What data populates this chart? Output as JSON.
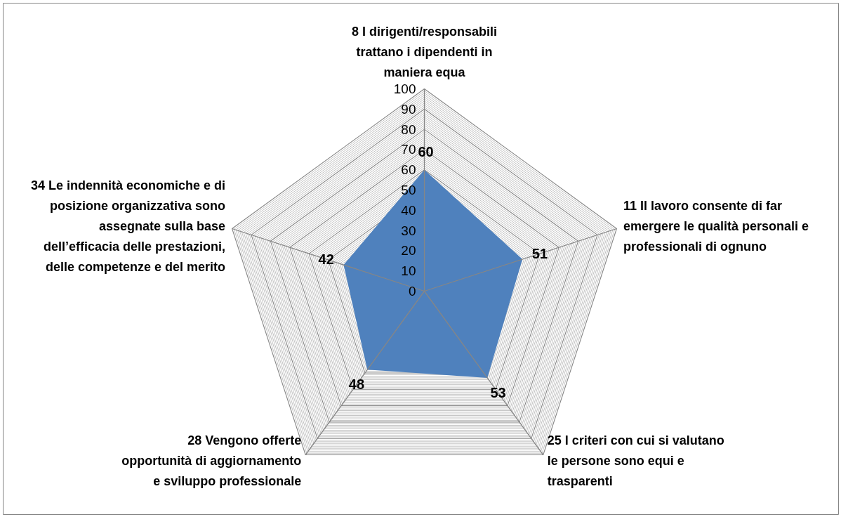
{
  "chart_data": {
    "type": "radar",
    "categories": [
      "8 I dirigenti/responsabili trattano i dipendenti in maniera equa",
      "11 Il lavoro consente di far emergere le qualità personali e professionali di ognuno",
      "25 I criteri con cui si valutano le persone sono equi e trasparenti",
      "28 Vengono offerte opportunità di aggiornamento e sviluppo professionale",
      "34 Le indennità economiche e di posizione organizzativa sono assegnate sulla base dell’efficacia delle prestazioni, delle competenze e del merito"
    ],
    "series": [
      {
        "color": "#4f81bd",
        "values": [
          60,
          51,
          53,
          48,
          42
        ]
      }
    ],
    "ylim": [
      0,
      100
    ],
    "yticks": [
      0,
      10,
      20,
      30,
      40,
      50,
      60,
      70,
      80,
      90,
      100
    ],
    "grid": true,
    "data_labels": true
  }
}
